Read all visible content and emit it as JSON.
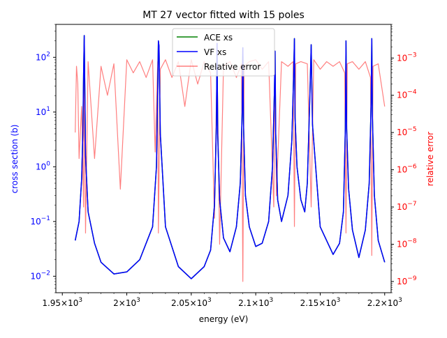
{
  "chart_data": {
    "type": "line",
    "title": "MT 27 vector fitted with 15 poles",
    "xlabel": "energy (eV)",
    "ylabel": "cross section (b)",
    "y2label": "relative error",
    "xlim": [
      1945,
      2205
    ],
    "ylim": [
      0.005,
      400
    ],
    "y2lim": [
      5e-10,
      0.008
    ],
    "yscale": "log",
    "y2scale": "log",
    "x_tick_labels": [
      {
        "value": 1950,
        "mantissa": "1.95",
        "exp": "3"
      },
      {
        "value": 2000,
        "mantissa": "2",
        "exp": "3"
      },
      {
        "value": 2050,
        "mantissa": "2.05",
        "exp": "3"
      },
      {
        "value": 2100,
        "mantissa": "2.1",
        "exp": "3"
      },
      {
        "value": 2150,
        "mantissa": "2.15",
        "exp": "3"
      },
      {
        "value": 2200,
        "mantissa": "2.2",
        "exp": "3"
      }
    ],
    "y_tick_labels": [
      {
        "value": 0.01,
        "exp": "−2"
      },
      {
        "value": 0.1,
        "exp": "−1"
      },
      {
        "value": 1,
        "exp": "0"
      },
      {
        "value": 10,
        "exp": "1"
      },
      {
        "value": 100,
        "exp": "2"
      }
    ],
    "y2_tick_labels": [
      {
        "value": 1e-09,
        "exp": "−9"
      },
      {
        "value": 1e-08,
        "exp": "−8"
      },
      {
        "value": 1e-07,
        "exp": "−7"
      },
      {
        "value": 1e-06,
        "exp": "−6"
      },
      {
        "value": 1e-05,
        "exp": "−5"
      },
      {
        "value": 0.0001,
        "exp": "−4"
      },
      {
        "value": 0.001,
        "exp": "−3"
      }
    ],
    "tick_base": "10",
    "tick_times": "×",
    "legend_placement": "upper center",
    "legend": [
      "ACE xs",
      "VF xs",
      "Relative error"
    ],
    "colors": {
      "ace": "#008000",
      "vf": "#0000ff",
      "error": "#ff0000",
      "left_axis": "#0000ff",
      "right_axis": "#ff0000"
    },
    "series": [
      {
        "name": "ACE xs",
        "axis": "left",
        "x": [
          1960,
          1963,
          1965,
          1966,
          1966.5,
          1967,
          1968,
          1970,
          1975,
          1980,
          1990,
          2000,
          2010,
          2020,
          2023,
          2024,
          2024.5,
          2025,
          2026,
          2030,
          2040,
          2050,
          2060,
          2065,
          2068,
          2069.5,
          2070,
          2070.5,
          2072,
          2075,
          2080,
          2085,
          2088,
          2089.5,
          2090,
          2090.5,
          2092,
          2095,
          2100,
          2105,
          2110,
          2113,
          2114.5,
          2115,
          2115.5,
          2117,
          2120,
          2125,
          2128,
          2129.5,
          2130,
          2130.5,
          2132,
          2135,
          2138,
          2140,
          2142,
          2143,
          2144,
          2150,
          2160,
          2165,
          2168,
          2169.5,
          2170,
          2170.5,
          2172,
          2175,
          2180,
          2185,
          2188,
          2189.5,
          2190,
          2190.5,
          2192,
          2195,
          2200
        ],
        "y": [
          0.045,
          0.1,
          0.6,
          5,
          50,
          250,
          1.6,
          0.15,
          0.04,
          0.018,
          0.011,
          0.012,
          0.02,
          0.08,
          1,
          30,
          200,
          160,
          4,
          0.08,
          0.015,
          0.009,
          0.015,
          0.03,
          0.2,
          6,
          180,
          4,
          0.25,
          0.05,
          0.028,
          0.08,
          0.5,
          10,
          150,
          6,
          0.3,
          0.08,
          0.035,
          0.04,
          0.1,
          1,
          25,
          130,
          4,
          0.25,
          0.1,
          0.3,
          3,
          60,
          220,
          8,
          1,
          0.25,
          0.15,
          0.5,
          20,
          170,
          6,
          0.08,
          0.025,
          0.04,
          0.15,
          5,
          200,
          5,
          0.4,
          0.07,
          0.022,
          0.07,
          0.5,
          15,
          220,
          8,
          0.3,
          0.045,
          0.018
        ]
      },
      {
        "name": "VF xs",
        "axis": "left",
        "x": [
          1960,
          1963,
          1965,
          1966,
          1966.5,
          1967,
          1968,
          1970,
          1975,
          1980,
          1990,
          2000,
          2010,
          2020,
          2023,
          2024,
          2024.5,
          2025,
          2026,
          2030,
          2040,
          2050,
          2060,
          2065,
          2068,
          2069.5,
          2070,
          2070.5,
          2072,
          2075,
          2080,
          2085,
          2088,
          2089.5,
          2090,
          2090.5,
          2092,
          2095,
          2100,
          2105,
          2110,
          2113,
          2114.5,
          2115,
          2115.5,
          2117,
          2120,
          2125,
          2128,
          2129.5,
          2130,
          2130.5,
          2132,
          2135,
          2138,
          2140,
          2142,
          2143,
          2144,
          2150,
          2160,
          2165,
          2168,
          2169.5,
          2170,
          2170.5,
          2172,
          2175,
          2180,
          2185,
          2188,
          2189.5,
          2190,
          2190.5,
          2192,
          2195,
          2200
        ],
        "y": [
          0.045,
          0.1,
          0.6,
          5,
          50,
          250,
          1.6,
          0.15,
          0.04,
          0.018,
          0.011,
          0.012,
          0.02,
          0.08,
          1,
          30,
          200,
          160,
          4,
          0.08,
          0.015,
          0.009,
          0.015,
          0.03,
          0.2,
          6,
          180,
          4,
          0.25,
          0.05,
          0.028,
          0.08,
          0.5,
          10,
          150,
          6,
          0.3,
          0.08,
          0.035,
          0.04,
          0.1,
          1,
          25,
          130,
          4,
          0.25,
          0.1,
          0.3,
          3,
          60,
          220,
          8,
          1,
          0.25,
          0.15,
          0.5,
          20,
          170,
          6,
          0.08,
          0.025,
          0.04,
          0.15,
          5,
          200,
          5,
          0.4,
          0.07,
          0.022,
          0.07,
          0.5,
          15,
          220,
          8,
          0.3,
          0.045,
          0.018
        ]
      },
      {
        "name": "Relative error",
        "axis": "right",
        "x": [
          1960,
          1961,
          1962,
          1963,
          1965,
          1966.5,
          1967,
          1968,
          1970,
          1975,
          1980,
          1985,
          1990,
          1995,
          2000,
          2005,
          2010,
          2015,
          2020,
          2022,
          2024,
          2024.5,
          2026,
          2030,
          2035,
          2040,
          2045,
          2050,
          2055,
          2060,
          2065,
          2068,
          2070,
          2072,
          2075,
          2080,
          2085,
          2089,
          2090,
          2091,
          2095,
          2100,
          2105,
          2110,
          2114,
          2115,
          2116,
          2120,
          2125,
          2129,
          2130,
          2131,
          2135,
          2140,
          2143,
          2145,
          2150,
          2155,
          2160,
          2165,
          2169,
          2170,
          2171,
          2175,
          2180,
          2185,
          2189,
          2190,
          2191,
          2195,
          2200
        ],
        "y": [
          1e-05,
          0.0006,
          0.0002,
          2e-06,
          5e-05,
          1e-07,
          0.0005,
          2e-08,
          0.0008,
          2e-06,
          0.0006,
          0.0001,
          0.0007,
          3e-07,
          0.0009,
          0.0004,
          0.0008,
          0.0003,
          0.0009,
          3e-06,
          0.0008,
          2e-08,
          0.0005,
          0.0009,
          0.0003,
          0.0008,
          5e-05,
          0.0009,
          0.0002,
          0.0008,
          0.0004,
          5e-08,
          0.0009,
          1e-08,
          0.0006,
          0.0008,
          0.0003,
          0.0007,
          1e-09,
          0.0006,
          0.0008,
          0.0009,
          0.0005,
          0.0008,
          1e-07,
          0.0009,
          2e-07,
          0.0008,
          0.0006,
          0.0008,
          3e-08,
          0.0007,
          0.0008,
          0.0007,
          1e-07,
          0.0009,
          0.0005,
          0.0008,
          0.0006,
          0.0008,
          0.0004,
          2e-08,
          0.0007,
          0.0008,
          0.0005,
          0.0008,
          0.0003,
          5e-09,
          0.0006,
          0.0007,
          5e-05
        ]
      }
    ]
  }
}
